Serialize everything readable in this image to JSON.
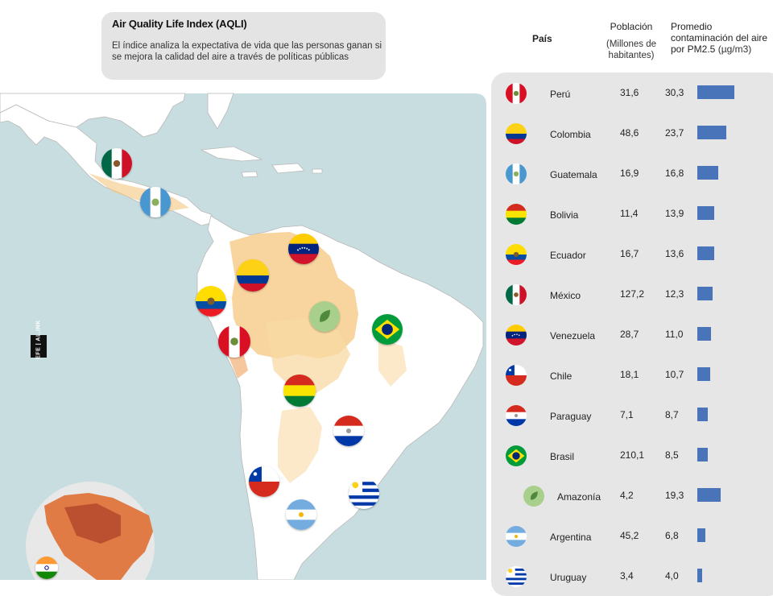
{
  "info": {
    "title": "Air Quality Life Index (AQLI)",
    "description": "El índice analiza la expectativa de vida que las personas ganan si se mejora la calidad del aire a través de políticas públicas"
  },
  "logo_text": "EFE | AL.INK",
  "table": {
    "headers": {
      "country": "País",
      "population": "Población",
      "population_sub": "(Millones de habitantes)",
      "pm": "Promedio contaminación del aire por PM2.5",
      "pm_unit": "(µg/m3)"
    },
    "bar_color": "#4a74ba",
    "rows": [
      {
        "flag": "peru",
        "name": "Perú",
        "population": "31,6",
        "pm": "30,3",
        "pm_value": 30.3
      },
      {
        "flag": "colombia",
        "name": "Colombia",
        "population": "48,6",
        "pm": "23,7",
        "pm_value": 23.7
      },
      {
        "flag": "guatemala",
        "name": "Guatemala",
        "population": "16,9",
        "pm": "16,8",
        "pm_value": 16.8
      },
      {
        "flag": "bolivia",
        "name": "Bolivia",
        "population": "11,4",
        "pm": "13,9",
        "pm_value": 13.9
      },
      {
        "flag": "ecuador",
        "name": "Ecuador",
        "population": "16,7",
        "pm": "13,6",
        "pm_value": 13.6
      },
      {
        "flag": "mexico",
        "name": "México",
        "population": "127,2",
        "pm": "12,3",
        "pm_value": 12.3
      },
      {
        "flag": "venezuela",
        "name": "Venezuela",
        "population": "28,7",
        "pm": "11,0",
        "pm_value": 11.0
      },
      {
        "flag": "chile",
        "name": "Chile",
        "population": "18,1",
        "pm": "10,7",
        "pm_value": 10.7
      },
      {
        "flag": "paraguay",
        "name": "Paraguay",
        "population": "7,1",
        "pm": "8,7",
        "pm_value": 8.7
      },
      {
        "flag": "brasil",
        "name": "Brasil",
        "population": "210,1",
        "pm": "8,5",
        "pm_value": 8.5
      },
      {
        "flag": "amazonia",
        "name": "Amazonía",
        "population": "4,2",
        "pm": "19,3",
        "pm_value": 19.3
      },
      {
        "flag": "argentina",
        "name": "Argentina",
        "population": "45,2",
        "pm": "6,8",
        "pm_value": 6.8
      },
      {
        "flag": "uruguay",
        "name": "Uruguay",
        "population": "3,4",
        "pm": "4,0",
        "pm_value": 4.0
      }
    ]
  },
  "map": {
    "ocean_color": "#c8dde0",
    "land_color": "#ffffff",
    "pollution_color": "#f5c77e",
    "flags": [
      "mexico",
      "guatemala",
      "venezuela",
      "colombia",
      "ecuador",
      "amazonia",
      "brasil",
      "peru",
      "bolivia",
      "paraguay",
      "chile",
      "uruguay",
      "argentina",
      "india"
    ]
  }
}
